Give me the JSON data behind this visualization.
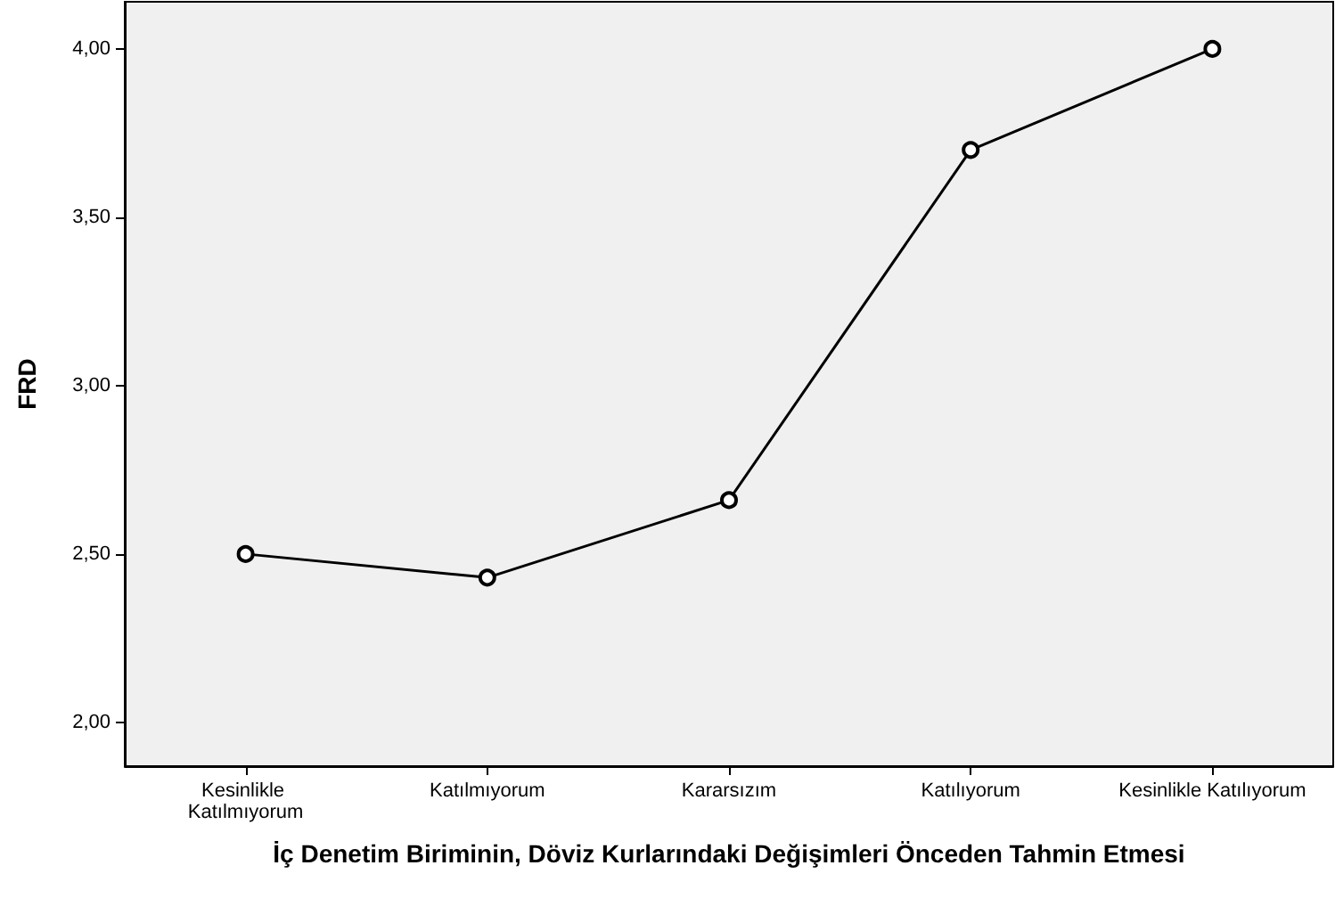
{
  "chart_data": {
    "type": "line",
    "xlabel": "İç Denetim Biriminin, Döviz Kurlarındaki Değişimleri Önceden Tahmin Etmesi",
    "ylabel": "FRD",
    "categories": [
      "Kesinlikle Katılmıyorum",
      "Katılmıyorum",
      "Kararsızım",
      "Katılıyorum",
      "Kesinlikle Katılıyorum"
    ],
    "series": [
      {
        "color": "#000000",
        "values": [
          2.5,
          2.43,
          2.66,
          3.7,
          4.0
        ]
      }
    ],
    "ylim": [
      1.87,
      4.14
    ],
    "yticks": [
      {
        "value": 2,
        "label": "2,00"
      },
      {
        "value": 2.5,
        "label": "2,50"
      },
      {
        "value": 3,
        "label": "3,00"
      },
      {
        "value": 3.5,
        "label": "3,50"
      },
      {
        "value": 4,
        "label": "4,00"
      }
    ],
    "marker": "circle",
    "line_style": "solid"
  }
}
